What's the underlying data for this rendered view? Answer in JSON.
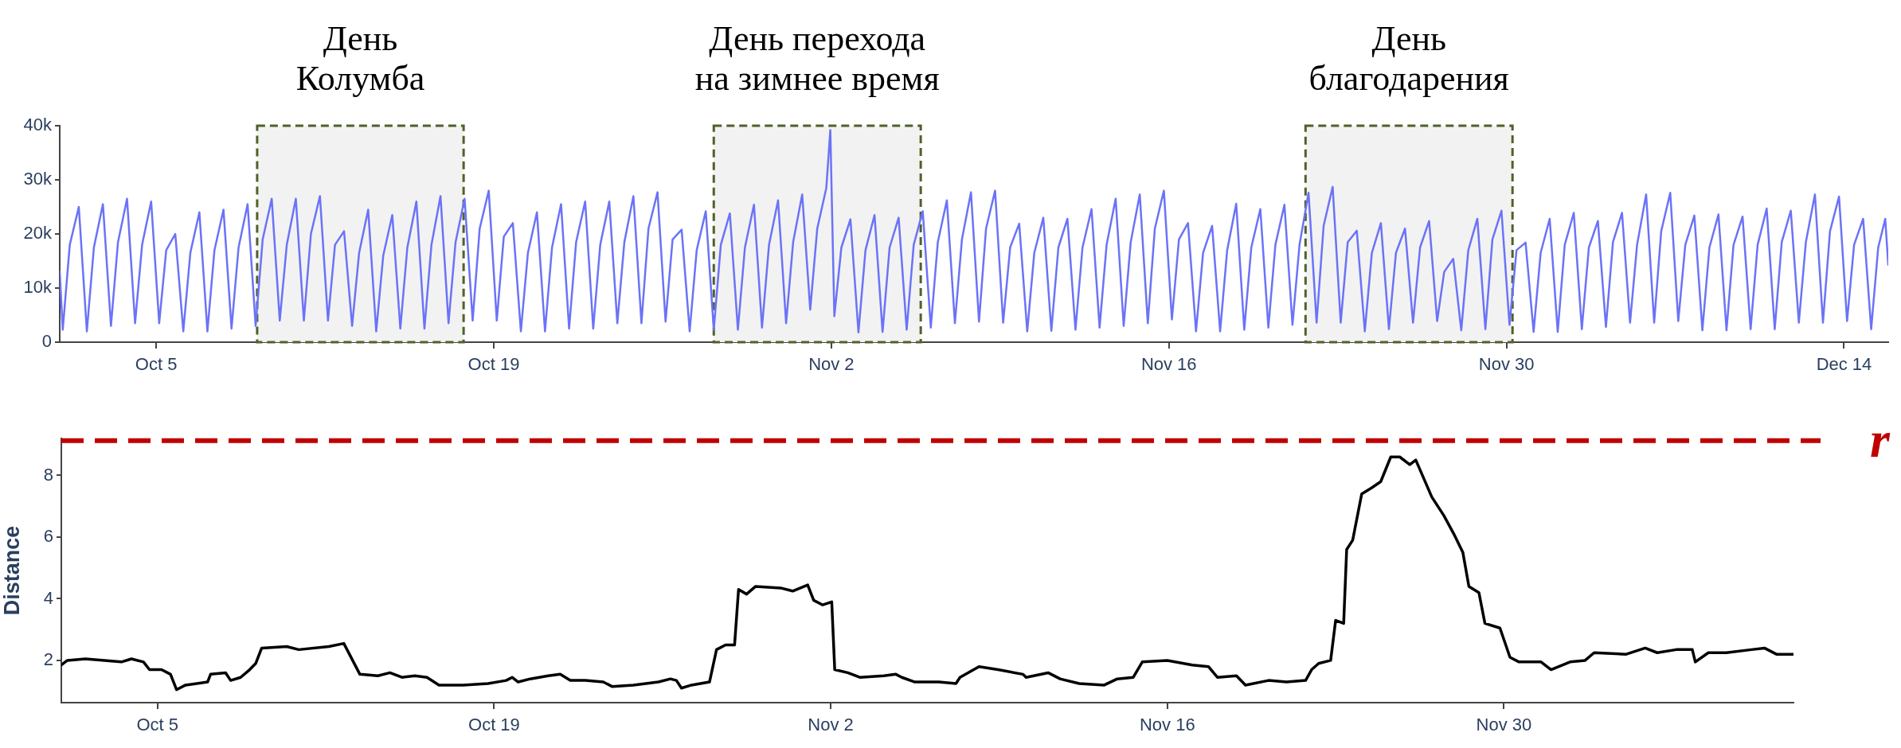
{
  "chart_data": [
    {
      "type": "line",
      "xlim": [
        "--10-01T00:00",
        "--12-15T20:00"
      ],
      "ylim": [
        0,
        40000
      ],
      "xticks": [
        {
          "value": "--10-05",
          "label": "Oct 5"
        },
        {
          "value": "--10-19",
          "label": "Oct 19"
        },
        {
          "value": "--11-02",
          "label": "Nov 2"
        },
        {
          "value": "--11-16",
          "label": "Nov 16"
        },
        {
          "value": "--11-30",
          "label": "Nov 30"
        },
        {
          "value": "--12-14",
          "label": "Dec 14"
        }
      ],
      "yticks": [
        0,
        {
          "value": 10000,
          "label": "10k"
        },
        {
          "value": 20000,
          "label": "20k"
        },
        {
          "value": 30000,
          "label": "30k"
        },
        {
          "value": 40000,
          "label": "40k"
        }
      ],
      "bands": [
        {
          "axis": "x",
          "from": "--10-09T04:30",
          "to": "--10-17T18:00",
          "label": "День\nКолумба",
          "color": "#f2f2f2"
        },
        {
          "axis": "x",
          "from": "--10-28T03:00",
          "to": "--11-05T17:00",
          "label": "День перехода\nна зимнее время",
          "color": "#f2f2f2"
        },
        {
          "axis": "x",
          "from": "--11-21T16:00",
          "to": "--11-30T06:00",
          "label": "День\nблагодарения",
          "color": "#f2f2f2"
        }
      ],
      "series": [
        {
          "color": "#6b73f7",
          "x": [
            "--10-01T00:00",
            "--10-01T03:00",
            "--10-01T10:00",
            "--10-01T19:00",
            "--10-02T03:00",
            "--10-02T10:00",
            "--10-02T19:00",
            "--10-03T03:00",
            "--10-03T10:00",
            "--10-03T19:00",
            "--10-04T03:00",
            "--10-04T10:00",
            "--10-04T19:00",
            "--10-05T03:00",
            "--10-05T10:00",
            "--10-05T19:00",
            "--10-06T03:00",
            "--10-06T10:00",
            "--10-06T19:00",
            "--10-07T03:00",
            "--10-07T10:00",
            "--10-07T19:00",
            "--10-08T03:00",
            "--10-08T10:00",
            "--10-08T19:00",
            "--10-09T03:00",
            "--10-09T10:00",
            "--10-09T19:00",
            "--10-10T03:00",
            "--10-10T10:00",
            "--10-10T19:00",
            "--10-11T03:00",
            "--10-11T10:00",
            "--10-11T19:00",
            "--10-12T03:00",
            "--10-12T10:00",
            "--10-12T19:00",
            "--10-13T03:00",
            "--10-13T10:00",
            "--10-13T19:00",
            "--10-14T03:00",
            "--10-14T10:00",
            "--10-14T19:00",
            "--10-15T03:00",
            "--10-15T10:00",
            "--10-15T19:00",
            "--10-16T03:00",
            "--10-16T10:00",
            "--10-16T19:00",
            "--10-17T03:00",
            "--10-17T10:00",
            "--10-17T19:00",
            "--10-18T03:00",
            "--10-18T10:00",
            "--10-18T19:00",
            "--10-19T03:00",
            "--10-19T10:00",
            "--10-19T19:00",
            "--10-20T03:00",
            "--10-20T10:00",
            "--10-20T19:00",
            "--10-21T03:00",
            "--10-21T10:00",
            "--10-21T19:00",
            "--10-22T03:00",
            "--10-22T10:00",
            "--10-22T19:00",
            "--10-23T03:00",
            "--10-23T10:00",
            "--10-23T19:00",
            "--10-24T03:00",
            "--10-24T10:00",
            "--10-24T19:00",
            "--10-25T03:00",
            "--10-25T10:00",
            "--10-25T19:00",
            "--10-26T03:00",
            "--10-26T10:00",
            "--10-26T19:00",
            "--10-27T03:00",
            "--10-27T10:00",
            "--10-27T19:00",
            "--10-28T03:00",
            "--10-28T10:00",
            "--10-28T19:00",
            "--10-29T03:00",
            "--10-29T10:00",
            "--10-29T19:00",
            "--10-30T03:00",
            "--10-30T10:00",
            "--10-30T19:00",
            "--10-31T03:00",
            "--10-31T10:00",
            "--10-31T19:00",
            "--11-01T03:00",
            "--11-01T10:00",
            "--11-01T19:00",
            "--11-01T23:00",
            "--11-02T03:00",
            "--11-02T10:00",
            "--11-02T19:00",
            "--11-03T03:00",
            "--11-03T10:00",
            "--11-03T19:00",
            "--11-04T03:00",
            "--11-04T10:00",
            "--11-04T19:00",
            "--11-05T03:00",
            "--11-05T10:00",
            "--11-05T19:00",
            "--11-06T03:00",
            "--11-06T10:00",
            "--11-06T19:00",
            "--11-07T03:00",
            "--11-07T10:00",
            "--11-07T19:00",
            "--11-08T03:00",
            "--11-08T10:00",
            "--11-08T19:00",
            "--11-09T03:00",
            "--11-09T10:00",
            "--11-09T19:00",
            "--11-10T03:00",
            "--11-10T10:00",
            "--11-10T19:00",
            "--11-11T03:00",
            "--11-11T10:00",
            "--11-11T19:00",
            "--11-12T03:00",
            "--11-12T10:00",
            "--11-12T19:00",
            "--11-13T03:00",
            "--11-13T10:00",
            "--11-13T19:00",
            "--11-14T03:00",
            "--11-14T10:00",
            "--11-14T19:00",
            "--11-15T03:00",
            "--11-15T10:00",
            "--11-15T19:00",
            "--11-16T03:00",
            "--11-16T10:00",
            "--11-16T19:00",
            "--11-17T03:00",
            "--11-17T10:00",
            "--11-17T19:00",
            "--11-18T03:00",
            "--11-18T10:00",
            "--11-18T19:00",
            "--11-19T03:00",
            "--11-19T10:00",
            "--11-19T19:00",
            "--11-20T03:00",
            "--11-20T10:00",
            "--11-20T19:00",
            "--11-21T03:00",
            "--11-21T10:00",
            "--11-21T19:00",
            "--11-22T03:00",
            "--11-22T10:00",
            "--11-22T19:00",
            "--11-23T03:00",
            "--11-23T10:00",
            "--11-23T19:00",
            "--11-24T03:00",
            "--11-24T10:00",
            "--11-24T19:00",
            "--11-25T03:00",
            "--11-25T10:00",
            "--11-25T19:00",
            "--11-26T03:00",
            "--11-26T10:00",
            "--11-26T19:00",
            "--11-27T03:00",
            "--11-27T10:00",
            "--11-27T19:00",
            "--11-28T03:00",
            "--11-28T10:00",
            "--11-28T19:00",
            "--11-29T03:00",
            "--11-29T10:00",
            "--11-29T19:00",
            "--11-30T03:00",
            "--11-30T10:00",
            "--11-30T19:00",
            "--12-01T03:00",
            "--12-01T10:00",
            "--12-01T19:00",
            "--12-02T03:00",
            "--12-02T10:00",
            "--12-02T19:00",
            "--12-03T03:00",
            "--12-03T10:00",
            "--12-03T19:00",
            "--12-04T03:00",
            "--12-04T10:00",
            "--12-04T19:00",
            "--12-05T03:00",
            "--12-05T10:00",
            "--12-05T19:00",
            "--12-06T03:00",
            "--12-06T10:00",
            "--12-06T19:00",
            "--12-07T03:00",
            "--12-07T10:00",
            "--12-07T19:00",
            "--12-08T03:00",
            "--12-08T10:00",
            "--12-08T19:00",
            "--12-09T03:00",
            "--12-09T10:00",
            "--12-09T19:00",
            "--12-10T03:00",
            "--12-10T10:00",
            "--12-10T19:00",
            "--12-11T03:00",
            "--12-11T10:00",
            "--12-11T19:00",
            "--12-12T03:00",
            "--12-12T10:00",
            "--12-12T19:00",
            "--12-13T03:00",
            "--12-13T10:00",
            "--12-13T19:00",
            "--12-14T03:00",
            "--12-14T10:00",
            "--12-14T19:00",
            "--12-15T03:00",
            "--12-15T10:00",
            "--12-15T17:00",
            "--12-15T20:00"
          ],
          "values": [
            13000,
            2300,
            18000,
            25000,
            2000,
            17500,
            25500,
            3000,
            18500,
            26500,
            3500,
            18000,
            26000,
            3500,
            17000,
            20000,
            2000,
            16500,
            24000,
            2000,
            17000,
            24500,
            2500,
            17500,
            25500,
            3000,
            19000,
            26500,
            4000,
            18000,
            26500,
            4000,
            20000,
            27000,
            4000,
            18000,
            20500,
            3000,
            16500,
            24500,
            2000,
            16000,
            23500,
            2500,
            17500,
            26000,
            2500,
            18000,
            27000,
            3500,
            18500,
            26500,
            4000,
            21000,
            28000,
            4000,
            19500,
            22000,
            2000,
            16500,
            24000,
            2000,
            17500,
            25500,
            2500,
            18500,
            26000,
            2500,
            18000,
            26000,
            3500,
            18500,
            27000,
            3500,
            21000,
            27700,
            3800,
            19000,
            20800,
            2000,
            17000,
            24200,
            2300,
            18000,
            23800,
            2300,
            17500,
            25400,
            2700,
            18000,
            26200,
            3500,
            18500,
            27300,
            6000,
            21000,
            28500,
            39200,
            4800,
            17500,
            22700,
            1800,
            17000,
            23500,
            1900,
            17500,
            23000,
            2300,
            18000,
            24200,
            2700,
            18500,
            26200,
            3500,
            19000,
            27700,
            3800,
            21000,
            28000,
            3600,
            17500,
            21900,
            2000,
            16500,
            23000,
            2100,
            17500,
            22800,
            2300,
            17500,
            24600,
            2700,
            18000,
            26500,
            3000,
            18500,
            27300,
            3500,
            21000,
            28000,
            4200,
            19000,
            22000,
            2000,
            16500,
            21500,
            2000,
            17000,
            25600,
            2300,
            17500,
            24600,
            2700,
            18000,
            25400,
            3200,
            18000,
            27600,
            3600,
            21500,
            28700,
            3600,
            18500,
            20600,
            2000,
            16500,
            22000,
            2400,
            16500,
            21000,
            3600,
            17500,
            22400,
            3900,
            13000,
            15400,
            2200,
            17000,
            22800,
            2400,
            19000,
            24300,
            3200,
            17000,
            18400,
            1900,
            16500,
            22800,
            1900,
            18000,
            23900,
            2400,
            17500,
            22400,
            2800,
            18500,
            23900,
            3600,
            18000,
            27300,
            3600,
            20500,
            27600,
            3900,
            18000,
            23400,
            2200,
            17500,
            23600,
            2200,
            18000,
            23200,
            2400,
            18000,
            24700,
            2400,
            18500,
            24300,
            3600,
            18500,
            27300,
            3600,
            20500,
            26900,
            3900,
            18000,
            22800,
            2400,
            17500,
            22800,
            14300
          ]
        }
      ]
    },
    {
      "type": "line",
      "ylabel": "Distance",
      "xlim": [
        "--10-01T00:00",
        "--12-12T01:00"
      ],
      "ylim": [
        0.63,
        9.2
      ],
      "xticks": [
        {
          "value": "--10-05",
          "label": "Oct 5"
        },
        {
          "value": "--10-19",
          "label": "Oct 19"
        },
        {
          "value": "--11-02",
          "label": "Nov 2"
        },
        {
          "value": "--11-16",
          "label": "Nov 16"
        },
        {
          "value": "--11-30",
          "label": "Nov 30"
        }
      ],
      "yticks": [
        2,
        4,
        6,
        8
      ],
      "ref_lines": [
        {
          "axis": "y",
          "value": 9.13,
          "label": "r",
          "color": "#c00000",
          "line_style": "dashed"
        }
      ],
      "series": [
        {
          "color": "#000000",
          "x": [
            "--10-01T00:00",
            "--10-01T06:00",
            "--10-02T00:00",
            "--10-03T12:00",
            "--10-03T22:00",
            "--10-04T10:00",
            "--10-04T16:00",
            "--10-05T04:00",
            "--10-05T13:00",
            "--10-05T19:00",
            "--10-06T04:00",
            "--10-07T02:00",
            "--10-07T05:00",
            "--10-07T20:00",
            "--10-08T01:00",
            "--10-08T11:00",
            "--10-08T20:00",
            "--10-09T02:00",
            "--10-09T08:00",
            "--10-10T09:00",
            "--10-10T21:00",
            "--10-12T03:00",
            "--10-12T18:00",
            "--10-13T10:00",
            "--10-14T04:00",
            "--10-14T16:00",
            "--10-15T04:00",
            "--10-15T17:00",
            "--10-16T05:00",
            "--10-16T17:00",
            "--10-17T17:00",
            "--10-18T18:00",
            "--10-19T12:00",
            "--10-19T18:00",
            "--10-20T00:00",
            "--10-20T12:00",
            "--10-21T06:00",
            "--10-21T18:00",
            "--10-22T04:00",
            "--10-22T19:00",
            "--10-23T13:00",
            "--10-23T22:00",
            "--10-24T19:00",
            "--10-25T20:00",
            "--10-26T08:00",
            "--10-26T14:00",
            "--10-26T19:00",
            "--10-27T05:00",
            "--10-27T23:00",
            "--10-28T06:00",
            "--10-28T15:00",
            "--10-29T00:00",
            "--10-29T04:00",
            "--10-29T12:00",
            "--10-29T21:00",
            "--10-30T22:00",
            "--10-31T10:00",
            "--11-01T01:00",
            "--11-01T07:00",
            "--11-01T16:00",
            "--11-02T01:00",
            "--11-02T04:00",
            "--11-02T17:00",
            "--11-03T05:00",
            "--11-04T05:00",
            "--11-04T17:00",
            "--11-04T23:00",
            "--11-05T12:00",
            "--11-06T12:00",
            "--11-07T05:00",
            "--11-07T09:00",
            "--11-08T04:00",
            "--11-08T23:00",
            "--11-10T00:00",
            "--11-10T03:00",
            "--11-11T01:00",
            "--11-11T13:00",
            "--11-12T08:00",
            "--11-13T09:00",
            "--11-13T22:00",
            "--11-14T14:00",
            "--11-14T23:00",
            "--11-16T00:00",
            "--11-17T01:00",
            "--11-17T17:00",
            "--11-18T02:00",
            "--11-18T21:00",
            "--11-19T06:00",
            "--11-20T05:00",
            "--11-20T23:00",
            "--11-21T18:00",
            "--11-22T00:00",
            "--11-22T07:00",
            "--11-22T19:00",
            "--11-23T00:00",
            "--11-23T08:00",
            "--11-23T11:00",
            "--11-23T17:00",
            "--11-24T02:00",
            "--11-24T12:00",
            "--11-24T21:00",
            "--11-25T07:00",
            "--11-25T16:00",
            "--11-26T02:00",
            "--11-26T08:00",
            "--11-27T00:00",
            "--11-27T12:00",
            "--11-27T22:00",
            "--11-28T07:00",
            "--11-28T13:00",
            "--11-28T23:00",
            "--11-29T05:00",
            "--11-29T20:00",
            "--11-30T06:00",
            "--11-30T15:00",
            "--12-01T13:00",
            "--12-01T23:00",
            "--12-02T18:00",
            "--12-03T09:00",
            "--12-03T18:00",
            "--12-05T02:00",
            "--12-05T21:00",
            "--12-06T09:00",
            "--12-07T04:00",
            "--12-07T20:00",
            "--12-07T23:00",
            "--12-08T12:00",
            "--12-09T06:00",
            "--12-10T07:00",
            "--12-10T20:00",
            "--12-11T08:00",
            "--12-12T01:00"
          ],
          "values": [
            1.85,
            2.0,
            2.05,
            1.95,
            2.05,
            1.95,
            1.7,
            1.7,
            1.55,
            1.05,
            1.2,
            1.3,
            1.55,
            1.6,
            1.35,
            1.45,
            1.7,
            1.9,
            2.4,
            2.45,
            2.35,
            2.45,
            2.55,
            1.55,
            1.5,
            1.6,
            1.45,
            1.5,
            1.45,
            1.2,
            1.2,
            1.25,
            1.35,
            1.45,
            1.3,
            1.4,
            1.5,
            1.55,
            1.35,
            1.35,
            1.3,
            1.15,
            1.2,
            1.3,
            1.4,
            1.35,
            1.1,
            1.2,
            1.3,
            2.35,
            2.5,
            2.5,
            4.3,
            4.15,
            4.4,
            4.35,
            4.25,
            4.45,
            3.95,
            3.8,
            3.9,
            1.7,
            1.6,
            1.45,
            1.5,
            1.55,
            1.45,
            1.3,
            1.3,
            1.25,
            1.45,
            1.8,
            1.7,
            1.55,
            1.45,
            1.6,
            1.4,
            1.25,
            1.2,
            1.4,
            1.45,
            1.95,
            2.0,
            1.85,
            1.8,
            1.45,
            1.5,
            1.2,
            1.35,
            1.3,
            1.35,
            1.7,
            1.9,
            2.0,
            3.3,
            3.2,
            5.6,
            5.9,
            7.4,
            7.6,
            7.8,
            8.6,
            8.6,
            8.35,
            8.5,
            7.3,
            6.7,
            6.1,
            5.5,
            4.4,
            4.2,
            3.2,
            3.05,
            2.1,
            1.95,
            1.95,
            1.7,
            1.95,
            2.0,
            2.25,
            2.2,
            2.4,
            2.25,
            2.35,
            2.35,
            1.95,
            2.25,
            2.25,
            2.35,
            2.4,
            2.2,
            2.2
          ]
        }
      ]
    }
  ]
}
